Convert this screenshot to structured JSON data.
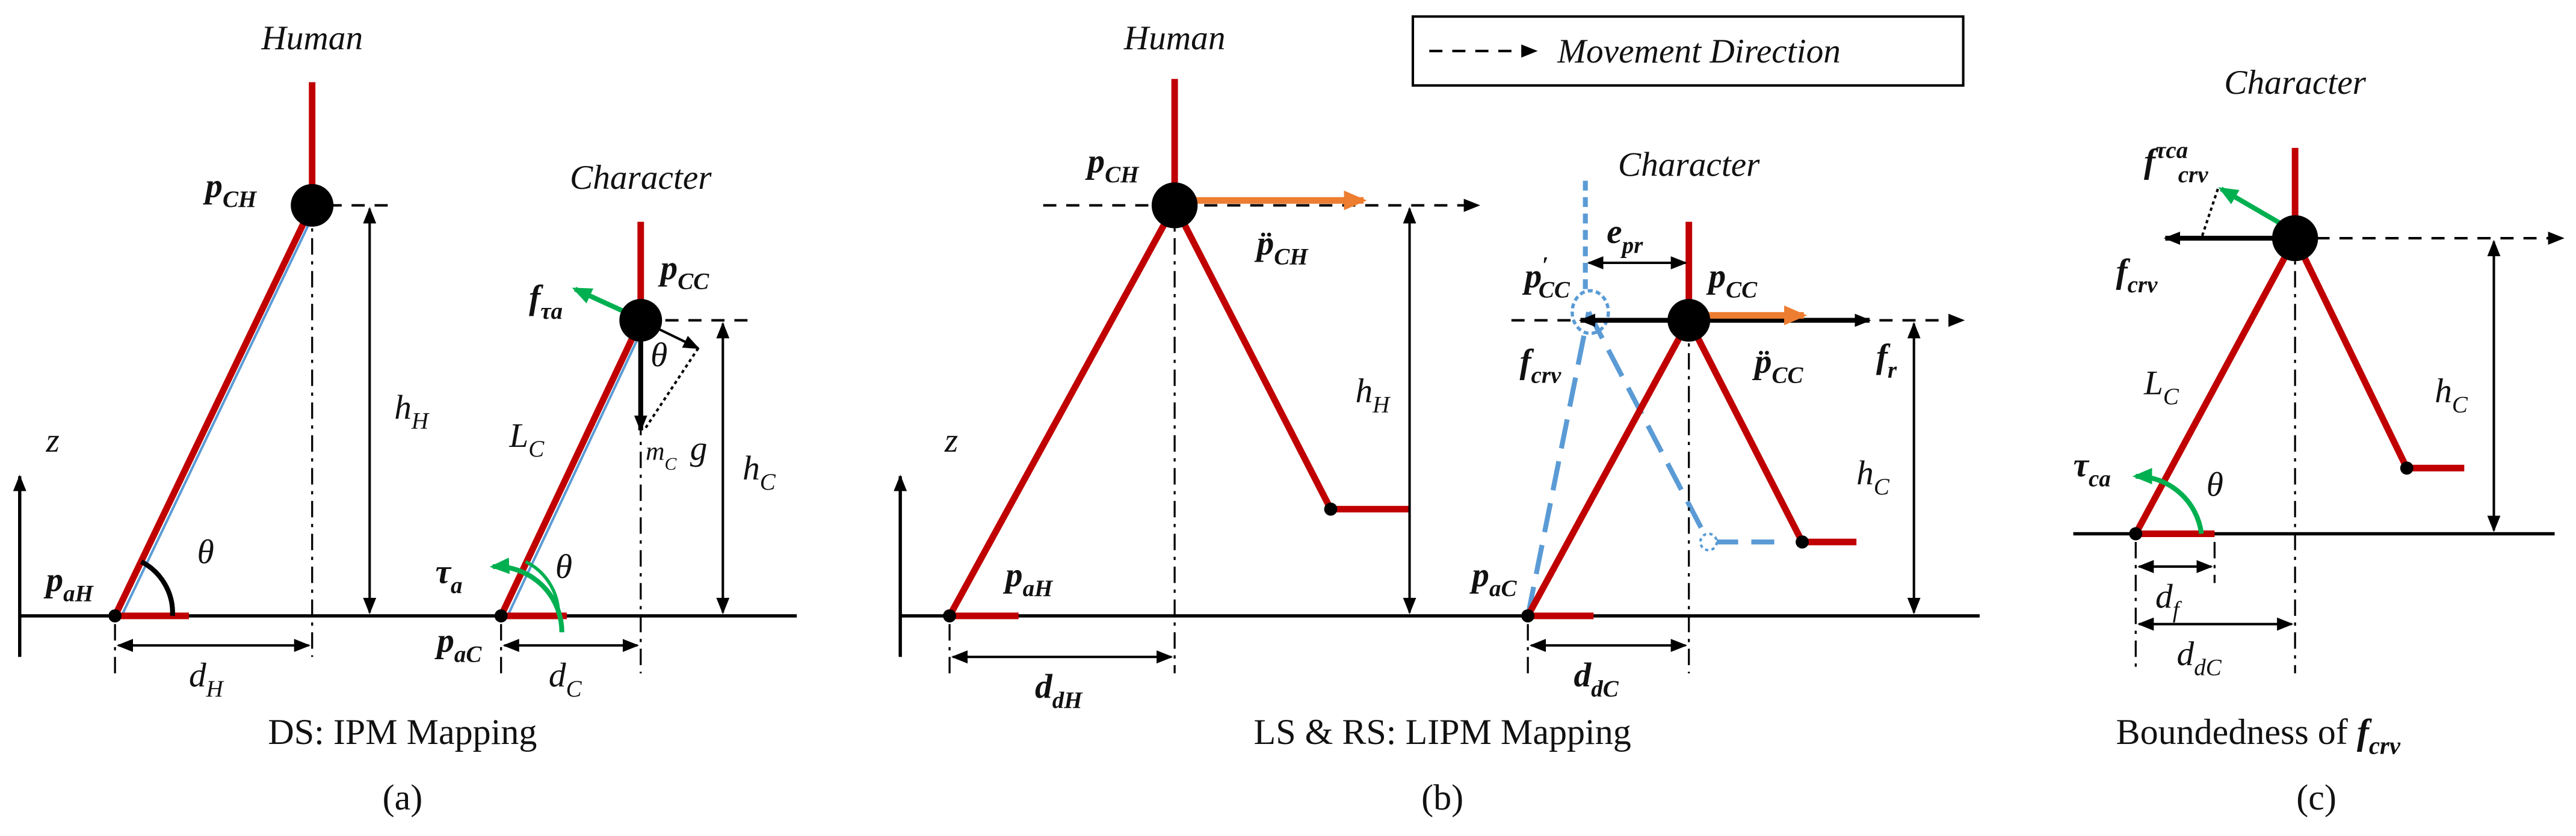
{
  "legend": "Movement Direction",
  "panels": [
    {
      "caption": "DS: IPM Mapping",
      "tag": "(a)",
      "labels": [
        {
          "base": "Human"
        },
        {
          "base": "Character"
        },
        {
          "base": "p",
          "sub": "CH"
        },
        {
          "base": "p",
          "sub": "CC"
        },
        {
          "base": "f",
          "sub": "τa"
        },
        {
          "base": "θ"
        },
        {
          "base": "h",
          "sub": "H"
        },
        {
          "base": "L",
          "sub": "C"
        },
        {
          "base": "m",
          "sub": "C"
        },
        {
          "base": "g"
        },
        {
          "base": "h",
          "sub": "C"
        },
        {
          "base": "z"
        },
        {
          "base": "p",
          "sub": "aH"
        },
        {
          "base": "θ"
        },
        {
          "base": "τ",
          "sub": "a"
        },
        {
          "base": "θ"
        },
        {
          "base": "p",
          "sub": "aC"
        },
        {
          "base": "d",
          "sub": "H"
        },
        {
          "base": "d",
          "sub": "C"
        }
      ]
    },
    {
      "caption": "LS & RS: LIPM Mapping",
      "tag": "(b)",
      "labels": [
        {
          "base": "Human"
        },
        {
          "base": "Character"
        },
        {
          "base": "p",
          "sub": "CH"
        },
        {
          "base": "p̈",
          "sub": "CH"
        },
        {
          "base": "h",
          "sub": "H"
        },
        {
          "base": "z"
        },
        {
          "base": "p",
          "sub": "aH"
        },
        {
          "base": "d",
          "sub": "dH"
        },
        {
          "base": "e",
          "sub": "pr"
        },
        {
          "base": "p",
          "sup": "′",
          "sub": "CC"
        },
        {
          "base": "p",
          "sub": "CC"
        },
        {
          "base": "f",
          "sub": "crv"
        },
        {
          "base": "p̈",
          "sub": "CC"
        },
        {
          "base": "f",
          "sub": "r"
        },
        {
          "base": "h",
          "sub": "C"
        },
        {
          "base": "p",
          "sub": "aC"
        },
        {
          "base": "d",
          "sub": "dC"
        }
      ]
    },
    {
      "caption": "Boundedness of",
      "caption_symbol": {
        "base": "f",
        "sub": "crv"
      },
      "tag": "(c)",
      "labels": [
        {
          "base": "Character"
        },
        {
          "base": "f",
          "sup": "τca",
          "sub": "crv"
        },
        {
          "base": "f",
          "sub": "crv"
        },
        {
          "base": "L",
          "sub": "C"
        },
        {
          "base": "h",
          "sub": "C"
        },
        {
          "base": "τ",
          "sub": "ca"
        },
        {
          "base": "θ"
        },
        {
          "base": "d",
          "sub": "f"
        },
        {
          "base": "d",
          "sub": "dC"
        }
      ]
    }
  ]
}
